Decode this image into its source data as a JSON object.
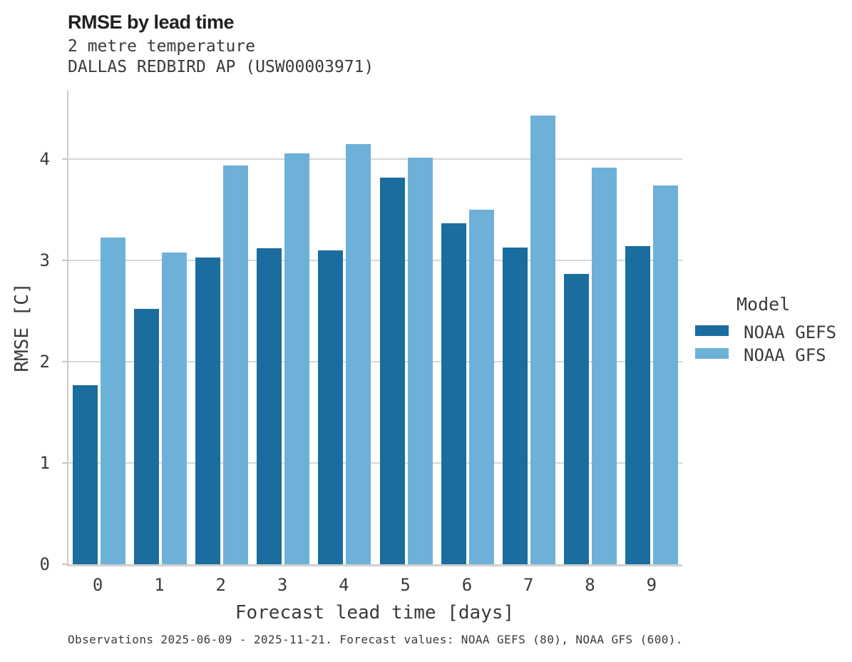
{
  "header": {
    "title": "RMSE by lead time",
    "subtitle_line1": "2 metre temperature",
    "subtitle_line2": "DALLAS REDBIRD AP (USW00003971)"
  },
  "legend": {
    "title": "Model",
    "items": [
      {
        "label": "NOAA GEFS",
        "color": "#1a6d9e"
      },
      {
        "label": "NOAA GFS",
        "color": "#6db1d8"
      }
    ]
  },
  "footer": {
    "note": "Observations 2025-06-09 - 2025-11-21. Forecast values: NOAA GEFS (80), NOAA GFS (600)."
  },
  "colors": {
    "noaa_gefs": "#1a6d9e",
    "noaa_gfs": "#6db1d8",
    "gridline": "#d7d7d7",
    "axis": "#cccccc",
    "text": "#3a3a3a"
  },
  "chart_data": {
    "type": "bar",
    "title": "RMSE by lead time",
    "subtitle": [
      "2 metre temperature",
      "DALLAS REDBIRD AP (USW00003971)"
    ],
    "xlabel": "Forecast lead time [days]",
    "ylabel": "RMSE [C]",
    "categories": [
      "0",
      "1",
      "2",
      "3",
      "4",
      "5",
      "6",
      "7",
      "8",
      "9"
    ],
    "series": [
      {
        "name": "NOAA GEFS",
        "color": "#1a6d9e",
        "values": [
          1.77,
          2.52,
          3.03,
          3.12,
          3.1,
          3.82,
          3.37,
          3.13,
          2.87,
          3.14
        ]
      },
      {
        "name": "NOAA GFS",
        "color": "#6db1d8",
        "values": [
          3.23,
          3.08,
          3.94,
          4.06,
          4.15,
          4.02,
          3.5,
          4.43,
          3.92,
          3.74
        ]
      }
    ],
    "ylim": [
      0,
      4.68
    ],
    "yticks": [
      0,
      1,
      2,
      3,
      4
    ],
    "grid": true,
    "legend_title": "Model",
    "legend_position": "right"
  }
}
